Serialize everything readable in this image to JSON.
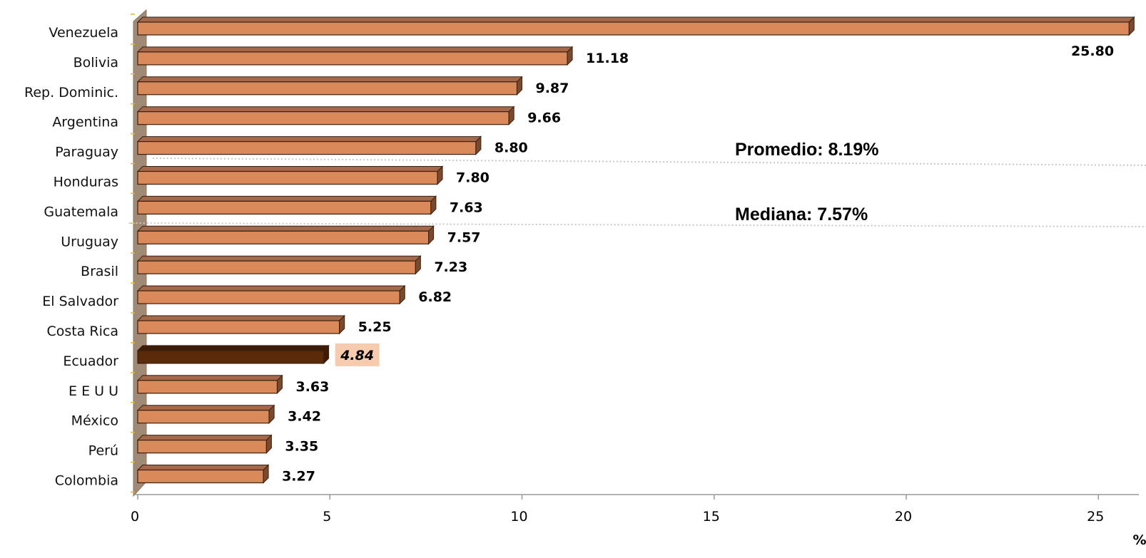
{
  "chart_data": {
    "type": "bar",
    "orientation": "horizontal",
    "categories": [
      "Venezuela",
      "Bolivia",
      "Rep. Dominic.",
      "Argentina",
      "Paraguay",
      "Honduras",
      "Guatemala",
      "Uruguay",
      "Brasil",
      "El Salvador",
      "Costa Rica",
      "Ecuador",
      "E E U U",
      "México",
      "Perú",
      "Colombia"
    ],
    "values": [
      25.8,
      11.18,
      9.87,
      9.66,
      8.8,
      7.8,
      7.63,
      7.57,
      7.23,
      6.82,
      5.25,
      4.84,
      3.63,
      3.42,
      3.35,
      3.27
    ],
    "value_labels": [
      "25.80",
      "11.18",
      "9.87",
      "9.66",
      "8.80",
      "7.80",
      "7.63",
      "7.57",
      "7.23",
      "6.82",
      "5.25",
      "4.84",
      "3.63",
      "3.42",
      "3.35",
      "3.27"
    ],
    "highlight_category": "Ecuador",
    "xlim": [
      0,
      26
    ],
    "xticks": [
      0,
      5,
      10,
      15,
      20,
      25
    ],
    "xlabel": "%",
    "grid": false,
    "reference_lines": [
      {
        "label": "Promedio:  8.19%",
        "value": 8.19
      },
      {
        "label": "Mediana:     7.57%",
        "value": 7.57
      }
    ],
    "colors": {
      "bar": "#D9895A",
      "bar_top": "#A4694A",
      "bar_side": "#7A4A2E",
      "highlight": "#5A2A0A",
      "highlight_top": "#3D1C06",
      "highlight_label_bg": "#F7CBAE",
      "wall": "#A08A76",
      "reference_line": "#C8C8C8"
    }
  }
}
